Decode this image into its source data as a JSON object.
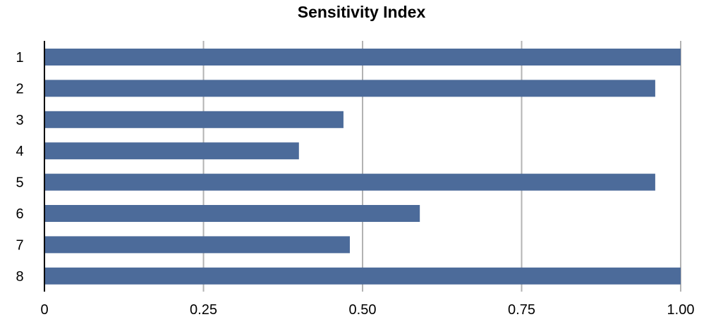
{
  "chart_data": {
    "type": "bar",
    "orientation": "horizontal",
    "title": "Sensitivity Index",
    "xlabel": "",
    "ylabel": "",
    "categories": [
      "1",
      "2",
      "3",
      "4",
      "5",
      "6",
      "7",
      "8"
    ],
    "values": [
      1.0,
      0.96,
      0.47,
      0.4,
      0.96,
      0.59,
      0.48,
      1.0
    ],
    "xlim": [
      0,
      1.0
    ],
    "xticks": [
      0,
      0.25,
      0.5,
      0.75,
      1.0
    ],
    "xtick_labels": [
      "0",
      "0.25",
      "0.50",
      "0.75",
      "1.00"
    ],
    "grid": "vertical",
    "legend": "none",
    "bar_color": "#4c6b9a"
  }
}
